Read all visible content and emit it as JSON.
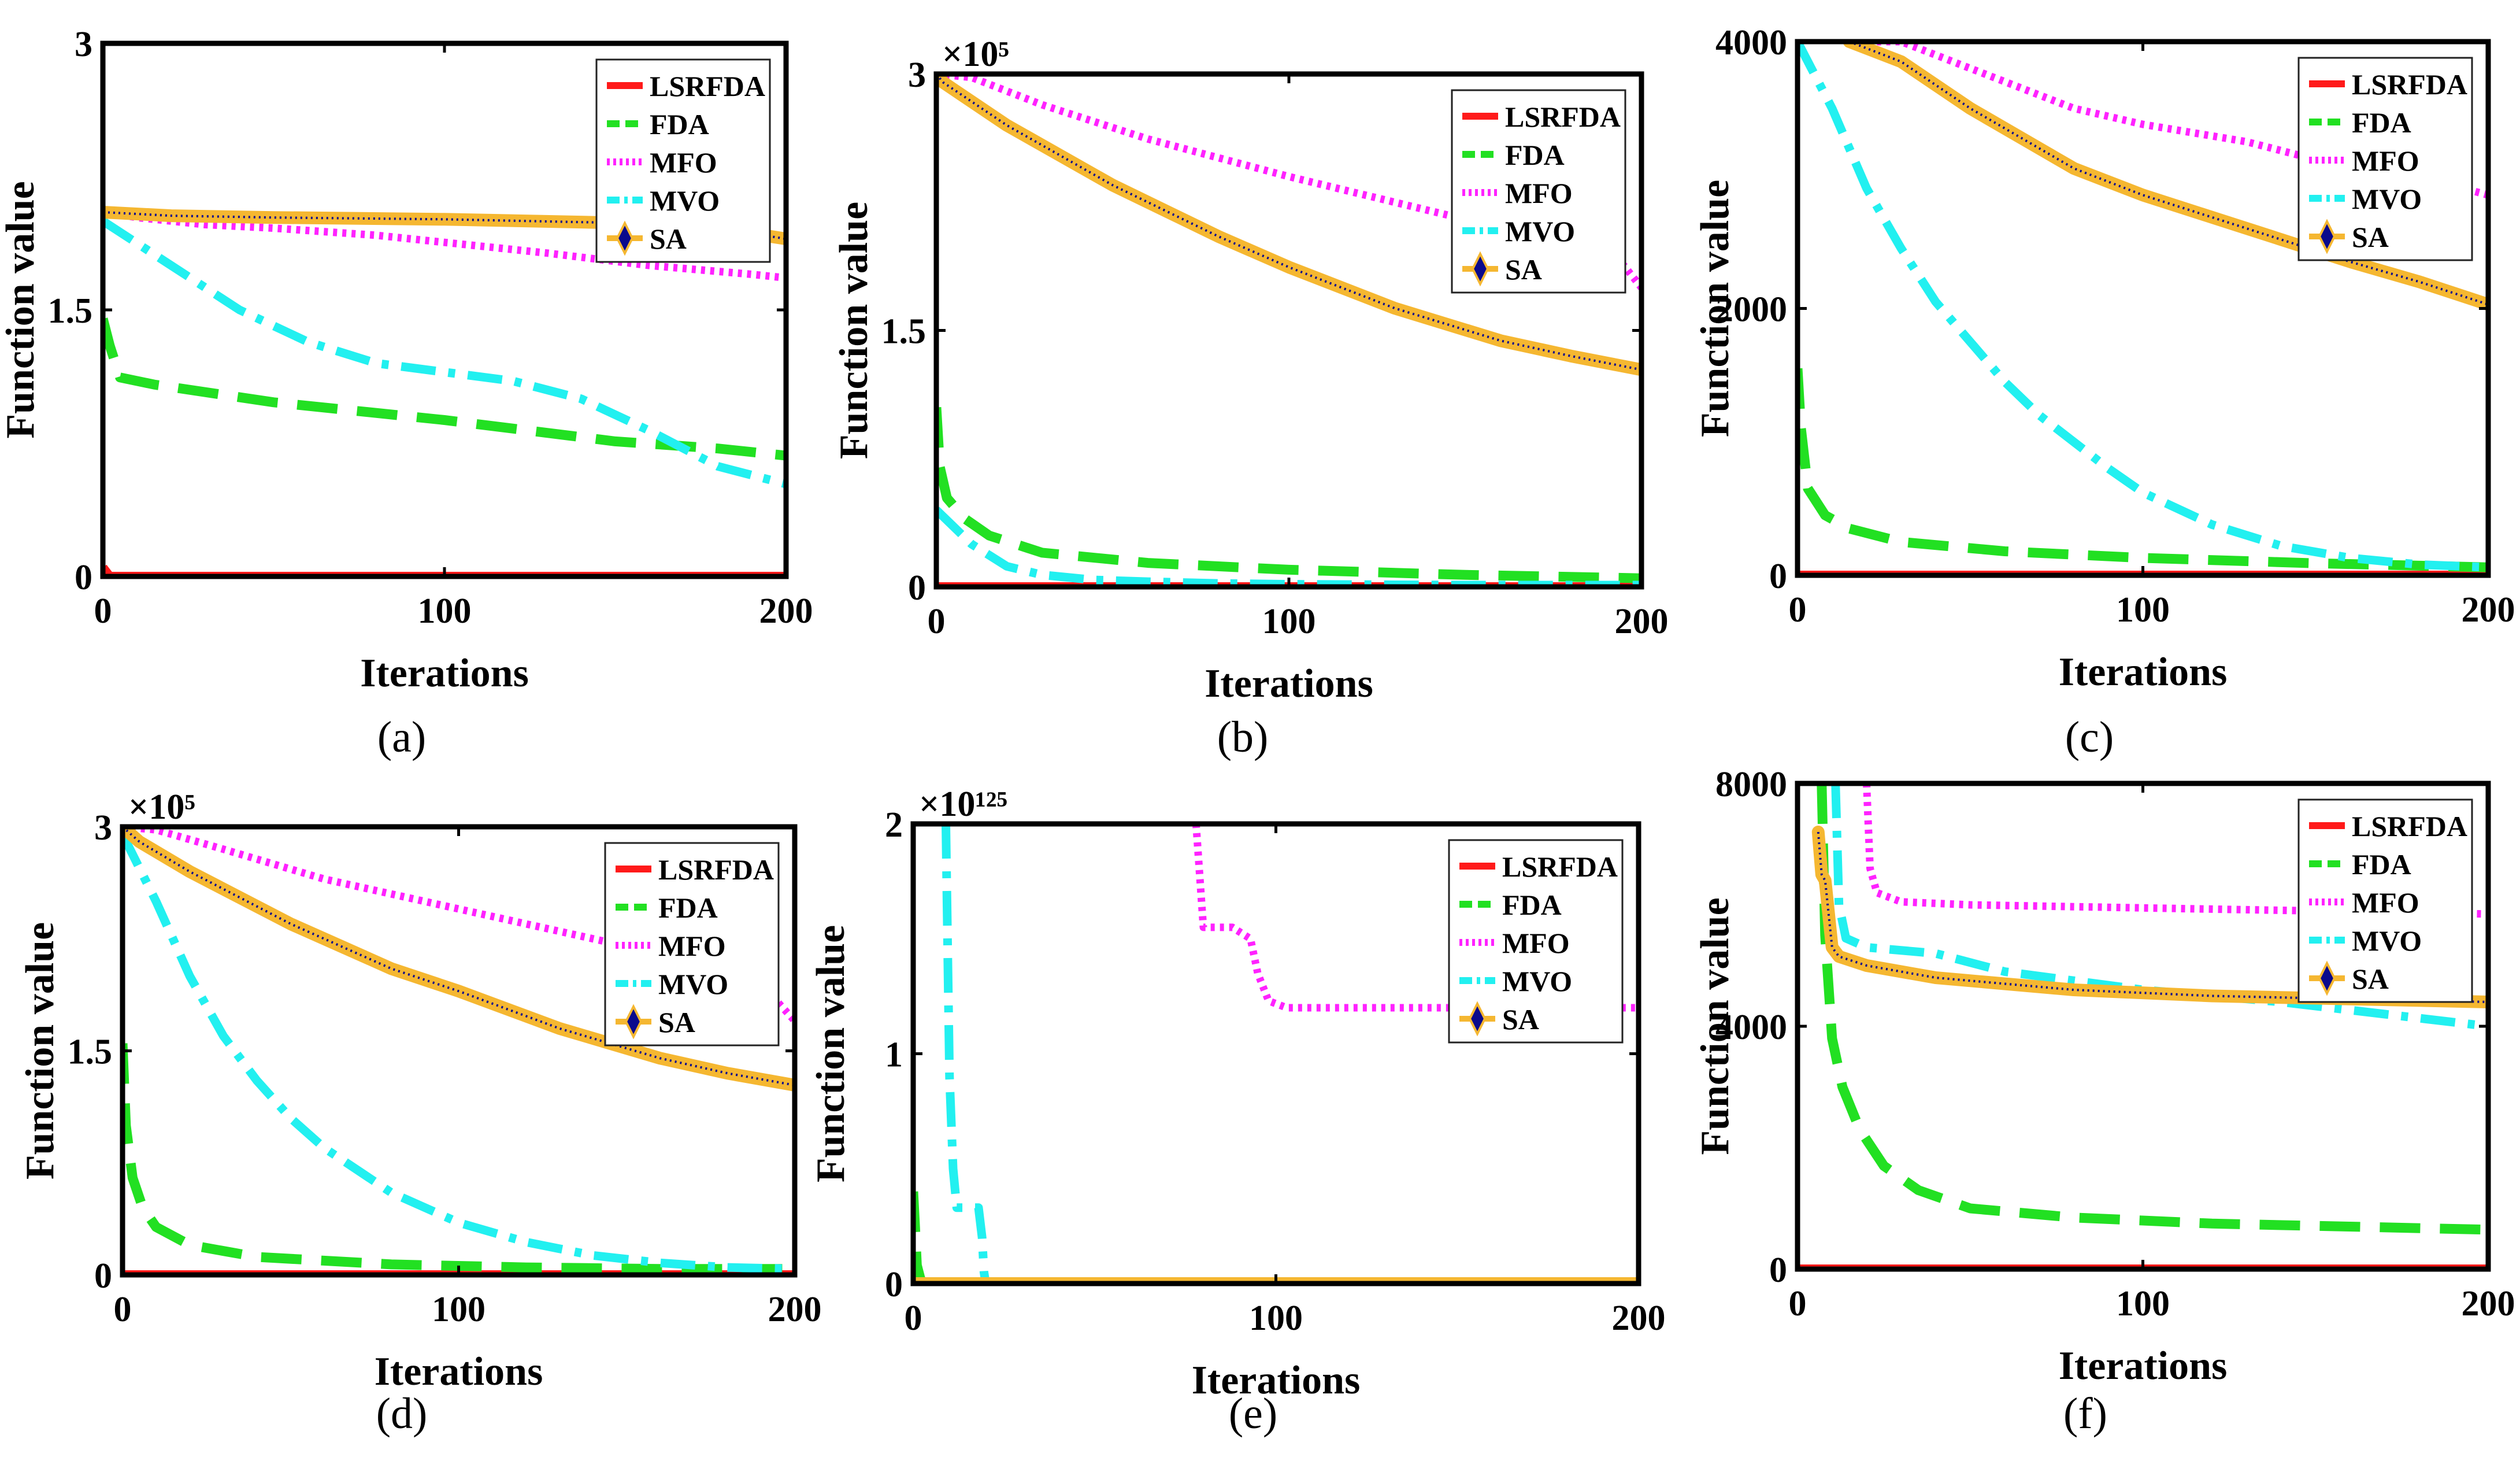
{
  "figure": {
    "panel_labels": [
      "(a)",
      "(b)",
      "(c)",
      "(d)",
      "(e)",
      "(f)"
    ]
  },
  "colors": {
    "LSRFDA": "#ff1a1a",
    "FDA": "#22e022",
    "MFO": "#ff22ff",
    "MVO": "#22f0f0",
    "SA_fill": "#f5b731",
    "SA_line": "#0a0a8c"
  },
  "chart_data": [
    {
      "type": "line",
      "panel": "(a)",
      "xlabel": "Iterations",
      "ylabel": "Function value",
      "xlim": [
        0,
        200
      ],
      "ylim": [
        0,
        3
      ],
      "xticks": [
        0,
        100,
        200
      ],
      "xtick_labels": [
        "0",
        "100",
        "200"
      ],
      "yticks": [
        0,
        1.5,
        3
      ],
      "ytick_labels": [
        "0",
        "1.5",
        "3"
      ],
      "exponent_label": "",
      "legend_position": "top-right",
      "legend": [
        "LSRFDA",
        "FDA",
        "MFO",
        "MVO",
        "SA"
      ],
      "series": [
        {
          "name": "LSRFDA",
          "x": [
            0,
            2,
            200
          ],
          "y": [
            0.05,
            0,
            0
          ]
        },
        {
          "name": "FDA",
          "x": [
            0,
            2,
            5,
            15,
            50,
            100,
            150,
            180,
            200
          ],
          "y": [
            1.45,
            1.3,
            1.12,
            1.08,
            0.98,
            0.88,
            0.76,
            0.72,
            0.68
          ]
        },
        {
          "name": "MFO",
          "x": [
            0,
            10,
            30,
            50,
            80,
            100,
            130,
            160,
            190,
            200
          ],
          "y": [
            2.05,
            2.02,
            1.98,
            1.96,
            1.92,
            1.88,
            1.82,
            1.75,
            1.7,
            1.68
          ]
        },
        {
          "name": "MVO",
          "x": [
            0,
            20,
            40,
            60,
            80,
            100,
            120,
            140,
            160,
            180,
            200
          ],
          "y": [
            2.0,
            1.75,
            1.5,
            1.32,
            1.2,
            1.15,
            1.1,
            1.0,
            0.82,
            0.62,
            0.52
          ]
        },
        {
          "name": "SA",
          "x": [
            0,
            20,
            50,
            100,
            150,
            180,
            200
          ],
          "y": [
            2.05,
            2.03,
            2.02,
            2.01,
            1.99,
            1.96,
            1.9
          ]
        }
      ]
    },
    {
      "type": "line",
      "panel": "(b)",
      "xlabel": "Iterations",
      "ylabel": "Function value",
      "xlim": [
        0,
        200
      ],
      "ylim": [
        0,
        3
      ],
      "xticks": [
        0,
        100,
        200
      ],
      "xtick_labels": [
        "0",
        "100",
        "200"
      ],
      "yticks": [
        0,
        1.5,
        3
      ],
      "ytick_labels": [
        "0",
        "1.5",
        "3"
      ],
      "exponent_label": "×10⁵",
      "legend_position": "top-right",
      "legend": [
        "LSRFDA",
        "FDA",
        "MFO",
        "MVO",
        "SA"
      ],
      "series": [
        {
          "name": "LSRFDA",
          "x": [
            0,
            200
          ],
          "y": [
            0,
            0
          ]
        },
        {
          "name": "FDA",
          "x": [
            0,
            1,
            3,
            8,
            15,
            30,
            60,
            100,
            150,
            200
          ],
          "y": [
            1.05,
            0.7,
            0.52,
            0.4,
            0.3,
            0.2,
            0.14,
            0.1,
            0.07,
            0.05
          ]
        },
        {
          "name": "MFO",
          "x": [
            0,
            10,
            30,
            60,
            100,
            130,
            160,
            180,
            195,
            200
          ],
          "y": [
            3.0,
            2.98,
            2.82,
            2.62,
            2.4,
            2.25,
            2.1,
            1.98,
            1.88,
            1.75
          ]
        },
        {
          "name": "MVO",
          "x": [
            0,
            5,
            10,
            20,
            30,
            45,
            60,
            80,
            100,
            150,
            200
          ],
          "y": [
            0.45,
            0.35,
            0.25,
            0.12,
            0.07,
            0.04,
            0.03,
            0.02,
            0.015,
            0.01,
            0.01
          ]
        },
        {
          "name": "SA",
          "x": [
            0,
            2,
            20,
            50,
            80,
            100,
            130,
            160,
            180,
            200
          ],
          "y": [
            3.0,
            2.95,
            2.7,
            2.35,
            2.05,
            1.87,
            1.63,
            1.44,
            1.35,
            1.27
          ]
        }
      ]
    },
    {
      "type": "line",
      "panel": "(c)",
      "xlabel": "Iterations",
      "ylabel": "Function value",
      "xlim": [
        0,
        200
      ],
      "ylim": [
        0,
        4000
      ],
      "xticks": [
        0,
        100,
        200
      ],
      "xtick_labels": [
        "0",
        "100",
        "200"
      ],
      "yticks": [
        0,
        2000,
        4000
      ],
      "ytick_labels": [
        "0",
        "2000",
        "4000"
      ],
      "exponent_label": "",
      "legend_position": "top-right",
      "legend": [
        "LSRFDA",
        "FDA",
        "MFO",
        "MVO",
        "SA"
      ],
      "series": [
        {
          "name": "LSRFDA",
          "x": [
            0,
            200
          ],
          "y": [
            0,
            0
          ]
        },
        {
          "name": "FDA",
          "x": [
            0,
            1,
            3,
            8,
            15,
            30,
            60,
            100,
            150,
            200
          ],
          "y": [
            1550,
            1100,
            650,
            450,
            350,
            250,
            180,
            130,
            90,
            60
          ]
        },
        {
          "name": "MFO",
          "x": [
            15,
            30,
            50,
            80,
            100,
            130,
            160,
            190,
            200
          ],
          "y": [
            4000,
            4000,
            3800,
            3500,
            3380,
            3250,
            3050,
            2920,
            2850
          ]
        },
        {
          "name": "MVO",
          "x": [
            0,
            10,
            20,
            30,
            40,
            50,
            60,
            70,
            80,
            90,
            100,
            120,
            140,
            160,
            180,
            200
          ],
          "y": [
            4000,
            3500,
            2900,
            2450,
            2050,
            1750,
            1450,
            1200,
            1000,
            800,
            620,
            380,
            220,
            130,
            80,
            60
          ]
        },
        {
          "name": "SA",
          "x": [
            15,
            30,
            50,
            80,
            100,
            130,
            160,
            180,
            200
          ],
          "y": [
            4000,
            3850,
            3500,
            3050,
            2850,
            2600,
            2350,
            2200,
            2030
          ]
        }
      ]
    },
    {
      "type": "line",
      "panel": "(d)",
      "xlabel": "Iterations",
      "ylabel": "Function value",
      "xlim": [
        0,
        200
      ],
      "ylim": [
        0,
        3
      ],
      "xticks": [
        0,
        100,
        200
      ],
      "xtick_labels": [
        "0",
        "100",
        "200"
      ],
      "yticks": [
        0,
        1.5,
        3
      ],
      "ytick_labels": [
        "0",
        "1.5",
        "3"
      ],
      "exponent_label": "×10⁵",
      "legend_position": "top-right",
      "legend": [
        "LSRFDA",
        "FDA",
        "MFO",
        "MVO",
        "SA"
      ],
      "series": [
        {
          "name": "LSRFDA",
          "x": [
            0,
            200
          ],
          "y": [
            0,
            0
          ]
        },
        {
          "name": "FDA",
          "x": [
            0,
            1,
            3,
            6,
            10,
            20,
            40,
            80,
            120,
            160,
            200
          ],
          "y": [
            1.55,
            1.0,
            0.65,
            0.45,
            0.32,
            0.2,
            0.12,
            0.07,
            0.05,
            0.04,
            0.04
          ]
        },
        {
          "name": "MFO",
          "x": [
            0,
            10,
            30,
            60,
            100,
            130,
            150,
            170,
            190,
            200
          ],
          "y": [
            3.0,
            2.98,
            2.85,
            2.65,
            2.45,
            2.3,
            2.2,
            2.1,
            1.95,
            1.7
          ]
        },
        {
          "name": "MVO",
          "x": [
            0,
            10,
            20,
            30,
            40,
            50,
            60,
            80,
            100,
            120,
            140,
            160,
            180,
            200
          ],
          "y": [
            2.95,
            2.5,
            2.0,
            1.6,
            1.3,
            1.05,
            0.85,
            0.55,
            0.35,
            0.22,
            0.13,
            0.08,
            0.05,
            0.04
          ]
        },
        {
          "name": "SA",
          "x": [
            0,
            5,
            20,
            50,
            80,
            100,
            130,
            160,
            180,
            200
          ],
          "y": [
            3.0,
            2.9,
            2.7,
            2.35,
            2.05,
            1.9,
            1.65,
            1.45,
            1.35,
            1.27
          ]
        }
      ]
    },
    {
      "type": "line",
      "panel": "(e)",
      "xlabel": "Iterations",
      "ylabel": "Function value",
      "xlim": [
        0,
        200
      ],
      "ylim": [
        0,
        2
      ],
      "xticks": [
        0,
        100,
        200
      ],
      "xtick_labels": [
        "0",
        "100",
        "200"
      ],
      "yticks": [
        0,
        1,
        2
      ],
      "ytick_labels": [
        "0",
        "1",
        "2"
      ],
      "exponent_label": "×10¹²⁵",
      "legend_position": "top-right",
      "legend": [
        "LSRFDA",
        "FDA",
        "MFO",
        "MVO",
        "SA"
      ],
      "series": [
        {
          "name": "LSRFDA",
          "x": [
            0,
            200
          ],
          "y": [
            0,
            0
          ]
        },
        {
          "name": "FDA",
          "x": [
            0,
            0.5,
            1,
            2,
            3,
            200
          ],
          "y": [
            0.4,
            0.25,
            0.08,
            0.02,
            0.0,
            0.0
          ]
        },
        {
          "name": "MFO",
          "x": [
            78,
            80,
            88,
            93,
            95,
            98,
            103,
            200
          ],
          "y": [
            2.0,
            1.55,
            1.55,
            1.5,
            1.35,
            1.23,
            1.2,
            1.2
          ]
        },
        {
          "name": "MVO",
          "x": [
            9,
            10,
            11,
            12,
            18,
            19,
            19.5,
            20
          ],
          "y": [
            2.0,
            0.9,
            0.5,
            0.33,
            0.33,
            0.2,
            0.05,
            0.0
          ]
        },
        {
          "name": "SA",
          "x": [
            0,
            200
          ],
          "y": [
            0,
            0
          ]
        }
      ]
    },
    {
      "type": "line",
      "panel": "(f)",
      "xlabel": "Iterations",
      "ylabel": "Function value",
      "xlim": [
        0,
        200
      ],
      "ylim": [
        0,
        8000
      ],
      "xticks": [
        0,
        100,
        200
      ],
      "xtick_labels": [
        "0",
        "100",
        "200"
      ],
      "yticks": [
        0,
        4000,
        8000
      ],
      "ytick_labels": [
        "0",
        "4000",
        "8000"
      ],
      "exponent_label": "",
      "legend_position": "top-right",
      "legend": [
        "LSRFDA",
        "FDA",
        "MFO",
        "MVO",
        "SA"
      ],
      "series": [
        {
          "name": "LSRFDA",
          "x": [
            0,
            200
          ],
          "y": [
            0,
            0
          ]
        },
        {
          "name": "FDA",
          "x": [
            7,
            8,
            10,
            13,
            18,
            25,
            35,
            50,
            80,
            120,
            160,
            200
          ],
          "y": [
            8000,
            5500,
            3800,
            3000,
            2300,
            1700,
            1300,
            1000,
            850,
            750,
            700,
            650
          ]
        },
        {
          "name": "MFO",
          "x": [
            20,
            21,
            23,
            30,
            50,
            100,
            150,
            200
          ],
          "y": [
            8000,
            6600,
            6200,
            6050,
            6000,
            5950,
            5900,
            5850
          ]
        },
        {
          "name": "MVO",
          "x": [
            11,
            12,
            14,
            20,
            40,
            60,
            100,
            140,
            170,
            200
          ],
          "y": [
            8000,
            6000,
            5450,
            5300,
            5200,
            4900,
            4600,
            4400,
            4200,
            4000
          ]
        },
        {
          "name": "SA",
          "x": [
            6,
            7,
            8,
            10,
            12,
            20,
            40,
            80,
            120,
            160,
            200
          ],
          "y": [
            7200,
            6500,
            6400,
            5300,
            5150,
            5000,
            4800,
            4600,
            4500,
            4450,
            4400
          ]
        }
      ]
    }
  ]
}
